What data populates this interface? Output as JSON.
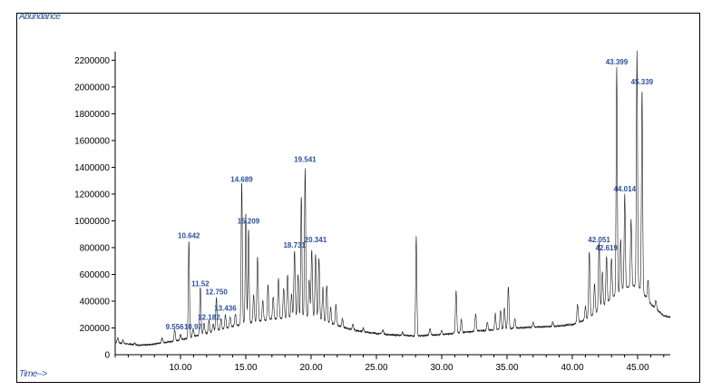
{
  "ylabel": "Abundance",
  "xlabel": "Time-->",
  "chart_data": {
    "type": "line",
    "xlim": [
      5.0,
      47.5
    ],
    "ylim": [
      0,
      2250000
    ],
    "x_ticks": [
      "10.00",
      "15.00",
      "20.00",
      "25.00",
      "30.00",
      "35.00",
      "40.00",
      "45.00"
    ],
    "x_tick_values": [
      10,
      15,
      20,
      25,
      30,
      35,
      40,
      45
    ],
    "y_ticks": [
      "200000",
      "400000",
      "600000",
      "800000",
      "1000000",
      "1200000",
      "1400000",
      "1600000",
      "1800000",
      "2000000",
      "2200000"
    ],
    "y_tick_values": [
      200000,
      400000,
      600000,
      800000,
      1000000,
      1200000,
      1400000,
      1600000,
      1800000,
      2000000,
      2200000
    ],
    "peak_labels": [
      {
        "label": "9.556",
        "x": 9.556,
        "y": 170000
      },
      {
        "label": "10.642",
        "x": 10.642,
        "y": 850000
      },
      {
        "label": "10.97",
        "x": 10.97,
        "y": 170000
      },
      {
        "label": "11.52",
        "x": 11.52,
        "y": 490000
      },
      {
        "label": "12.182",
        "x": 12.182,
        "y": 240000
      },
      {
        "label": "12.750",
        "x": 12.75,
        "y": 430000
      },
      {
        "label": "13.436",
        "x": 13.436,
        "y": 310000
      },
      {
        "label": "14.689",
        "x": 14.689,
        "y": 1270000
      },
      {
        "label": "15.209",
        "x": 15.209,
        "y": 960000
      },
      {
        "label": "18.731",
        "x": 18.731,
        "y": 780000
      },
      {
        "label": "19.541",
        "x": 19.541,
        "y": 1420000
      },
      {
        "label": "20.341",
        "x": 20.341,
        "y": 820000
      },
      {
        "label": "42.051",
        "x": 42.051,
        "y": 820000
      },
      {
        "label": "42.619",
        "x": 42.619,
        "y": 760000
      },
      {
        "label": "43.399",
        "x": 43.399,
        "y": 2150000
      },
      {
        "label": "44.014",
        "x": 44.014,
        "y": 1200000
      },
      {
        "label": "45.339",
        "x": 45.339,
        "y": 2000000
      }
    ],
    "series": [
      {
        "baseline": [
          [
            5.0,
            90000
          ],
          [
            6.0,
            80000
          ],
          [
            7.0,
            70000
          ],
          [
            8.0,
            80000
          ],
          [
            9.0,
            95000
          ],
          [
            10.0,
            110000
          ],
          [
            11.0,
            135000
          ],
          [
            12.0,
            160000
          ],
          [
            13.0,
            185000
          ],
          [
            14.0,
            210000
          ],
          [
            15.0,
            235000
          ],
          [
            16.0,
            250000
          ],
          [
            17.0,
            265000
          ],
          [
            18.0,
            275000
          ],
          [
            19.0,
            280000
          ],
          [
            20.0,
            285000
          ],
          [
            21.0,
            250000
          ],
          [
            22.0,
            220000
          ],
          [
            23.0,
            190000
          ],
          [
            24.0,
            170000
          ],
          [
            25.0,
            160000
          ],
          [
            26.0,
            150000
          ],
          [
            27.0,
            145000
          ],
          [
            28.0,
            140000
          ],
          [
            29.0,
            145000
          ],
          [
            30.0,
            150000
          ],
          [
            31.0,
            160000
          ],
          [
            32.0,
            170000
          ],
          [
            33.0,
            180000
          ],
          [
            34.0,
            185000
          ],
          [
            35.0,
            195000
          ],
          [
            36.0,
            200000
          ],
          [
            37.0,
            205000
          ],
          [
            38.0,
            210000
          ],
          [
            39.0,
            215000
          ],
          [
            40.0,
            225000
          ],
          [
            41.0,
            260000
          ],
          [
            42.0,
            330000
          ],
          [
            43.0,
            420000
          ],
          [
            44.0,
            500000
          ],
          [
            45.0,
            520000
          ],
          [
            46.0,
            380000
          ],
          [
            47.0,
            290000
          ],
          [
            47.5,
            280000
          ]
        ],
        "peaks": [
          [
            5.2,
            40000
          ],
          [
            5.6,
            25000
          ],
          [
            6.5,
            15000
          ],
          [
            8.6,
            35000
          ],
          [
            9.556,
            80000
          ],
          [
            10.0,
            40000
          ],
          [
            10.642,
            720000
          ],
          [
            10.97,
            60000
          ],
          [
            11.52,
            360000
          ],
          [
            11.8,
            80000
          ],
          [
            12.182,
            90000
          ],
          [
            12.5,
            60000
          ],
          [
            12.75,
            250000
          ],
          [
            13.1,
            80000
          ],
          [
            13.436,
            100000
          ],
          [
            13.8,
            80000
          ],
          [
            14.2,
            90000
          ],
          [
            14.689,
            1060000
          ],
          [
            15.0,
            820000
          ],
          [
            15.209,
            700000
          ],
          [
            15.6,
            200000
          ],
          [
            15.9,
            480000
          ],
          [
            16.3,
            150000
          ],
          [
            16.7,
            260000
          ],
          [
            17.1,
            170000
          ],
          [
            17.5,
            300000
          ],
          [
            17.9,
            220000
          ],
          [
            18.2,
            320000
          ],
          [
            18.5,
            180000
          ],
          [
            18.731,
            500000
          ],
          [
            19.0,
            320000
          ],
          [
            19.25,
            900000
          ],
          [
            19.541,
            1110000
          ],
          [
            19.85,
            280000
          ],
          [
            20.05,
            500000
          ],
          [
            20.341,
            480000
          ],
          [
            20.6,
            460000
          ],
          [
            20.9,
            250000
          ],
          [
            21.2,
            270000
          ],
          [
            21.5,
            120000
          ],
          [
            21.9,
            150000
          ],
          [
            22.4,
            60000
          ],
          [
            23.2,
            40000
          ],
          [
            24.0,
            30000
          ],
          [
            25.5,
            30000
          ],
          [
            27.0,
            20000
          ],
          [
            28.05,
            740000
          ],
          [
            29.1,
            50000
          ],
          [
            30.0,
            30000
          ],
          [
            31.1,
            320000
          ],
          [
            31.5,
            100000
          ],
          [
            32.6,
            130000
          ],
          [
            33.5,
            60000
          ],
          [
            34.1,
            120000
          ],
          [
            34.5,
            140000
          ],
          [
            34.8,
            160000
          ],
          [
            35.1,
            310000
          ],
          [
            35.6,
            70000
          ],
          [
            37.0,
            40000
          ],
          [
            38.5,
            30000
          ],
          [
            40.4,
            140000
          ],
          [
            41.0,
            100000
          ],
          [
            41.3,
            490000
          ],
          [
            41.7,
            220000
          ],
          [
            42.051,
            510000
          ],
          [
            42.3,
            260000
          ],
          [
            42.619,
            350000
          ],
          [
            43.0,
            300000
          ],
          [
            43.399,
            1700000
          ],
          [
            43.7,
            380000
          ],
          [
            44.014,
            700000
          ],
          [
            44.5,
            500000
          ],
          [
            44.95,
            1750000
          ],
          [
            45.339,
            1500000
          ],
          [
            45.8,
            150000
          ],
          [
            46.4,
            60000
          ]
        ]
      }
    ]
  }
}
